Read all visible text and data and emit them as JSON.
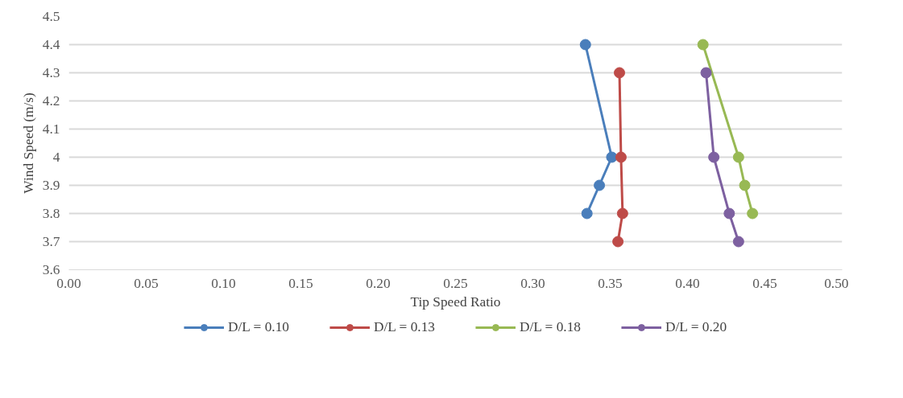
{
  "chart_data": {
    "type": "line",
    "xlabel": "Tip Speed Ratio",
    "ylabel": "Wind Speed (m/s)",
    "xlim": [
      0,
      0.5
    ],
    "xticks": [
      {
        "value": 0,
        "label": "0.00"
      },
      {
        "value": 0.05,
        "label": "0.05"
      },
      {
        "value": 0.1,
        "label": "0.10"
      },
      {
        "value": 0.15,
        "label": "0.15"
      },
      {
        "value": 0.2,
        "label": "0.20"
      },
      {
        "value": 0.25,
        "label": "0.25"
      },
      {
        "value": 0.3,
        "label": "0.30"
      },
      {
        "value": 0.35,
        "label": "0.35"
      },
      {
        "value": 0.4,
        "label": "0.40"
      },
      {
        "value": 0.45,
        "label": "0.45"
      },
      {
        "value": 0.5,
        "label": "0.50"
      }
    ],
    "ylim": [
      3.6,
      4.5
    ],
    "yticks": [
      3.6,
      3.7,
      3.8,
      3.9,
      {
        "value": 4,
        "label": "4"
      },
      4.1,
      4.2,
      4.3,
      4.4,
      4.5
    ],
    "grid": "y",
    "legend": "bottom",
    "marker": "circle",
    "line_style": "solid",
    "series": [
      {
        "name": "D/L = 0.10",
        "color": "#4a7ebb",
        "x": [
          0.334,
          0.351,
          0.343,
          0.335
        ],
        "values": [
          4.4,
          4.0,
          3.9,
          3.8
        ]
      },
      {
        "name": "D/L = 0.13",
        "color": "#be4b48",
        "x": [
          0.356,
          0.357,
          0.358,
          0.355
        ],
        "values": [
          4.3,
          4.0,
          3.8,
          3.7
        ]
      },
      {
        "name": "D/L = 0.18",
        "color": "#98b954",
        "x": [
          0.41,
          0.433,
          0.437,
          0.442
        ],
        "values": [
          4.4,
          4.0,
          3.9,
          3.8
        ]
      },
      {
        "name": "D/L = 0.20",
        "color": "#7d60a0",
        "x": [
          0.412,
          0.417,
          0.427,
          0.433
        ],
        "values": [
          4.3,
          4.0,
          3.8,
          3.7
        ]
      }
    ]
  }
}
